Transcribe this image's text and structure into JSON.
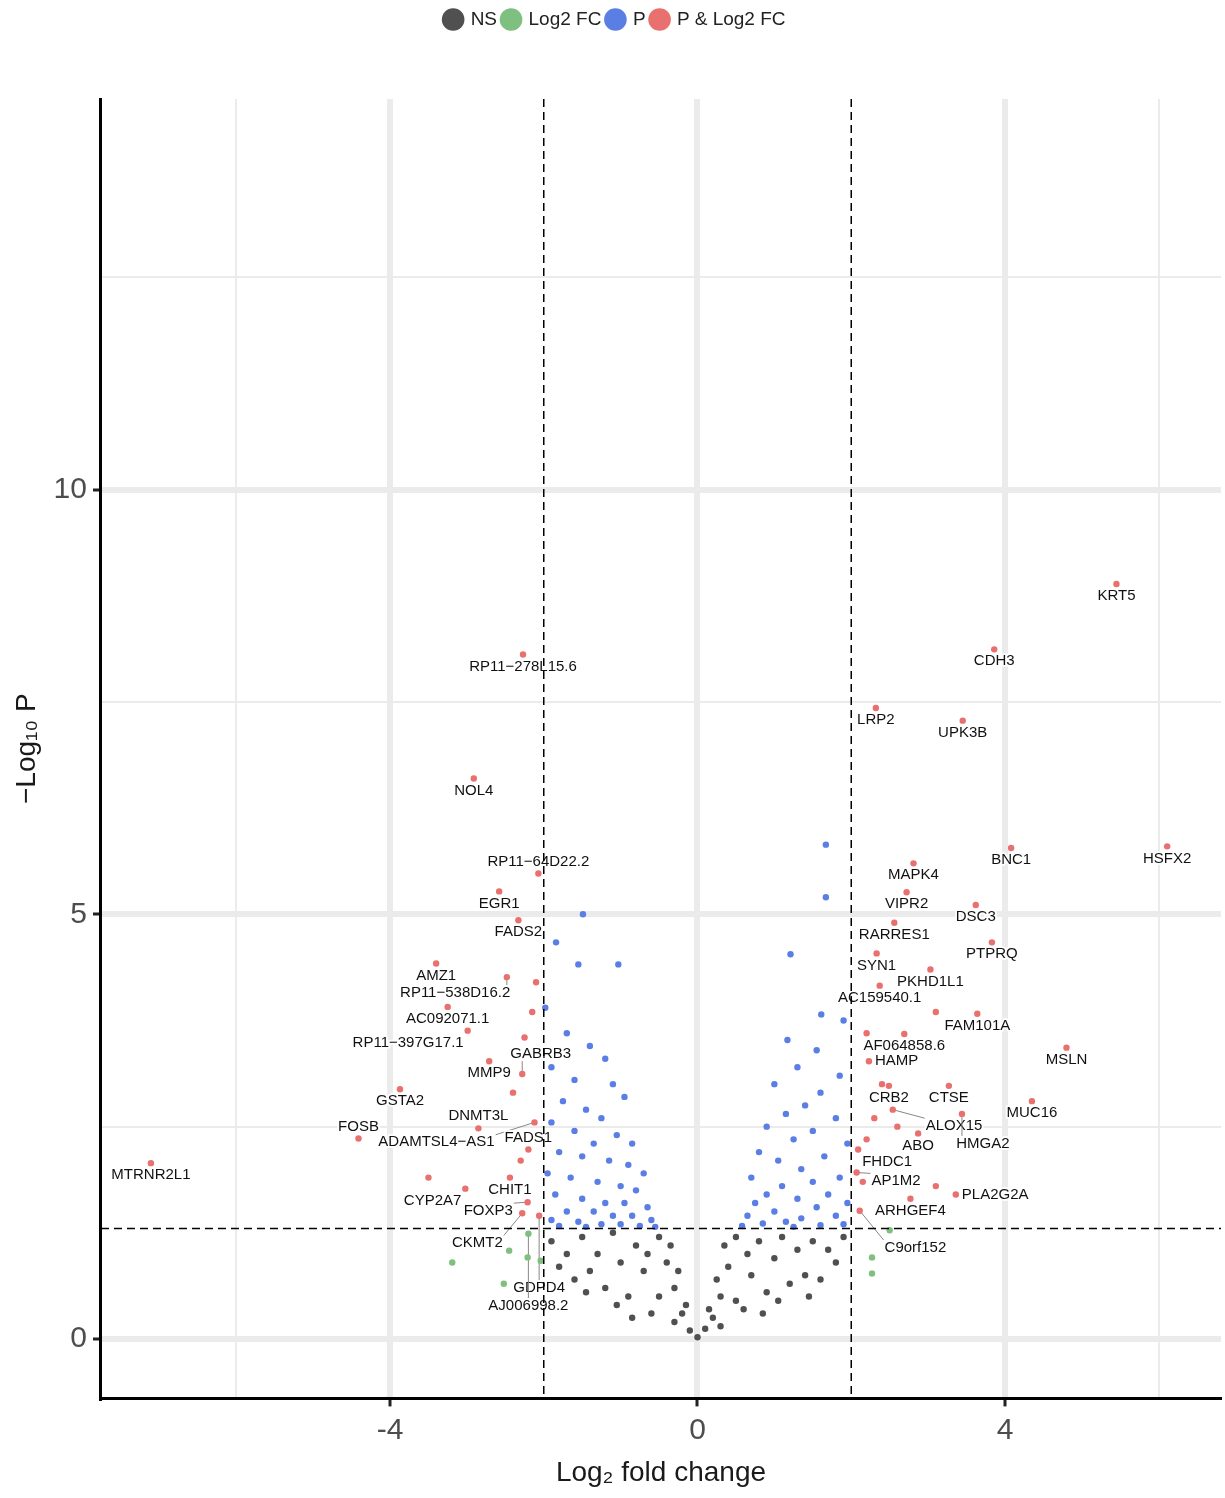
{
  "chart_data": {
    "type": "scatter",
    "xlabel": "Log₂ fold change",
    "ylabel": "−Log₁₀ P",
    "legend": "top",
    "grid": true,
    "marker": "circle",
    "xlim": [
      -7.76,
      6.81
    ],
    "ylim": [
      -0.7,
      14.6
    ],
    "xticks": [
      {
        "value": -6,
        "label": null
      },
      -4,
      0,
      4,
      {
        "value": 6,
        "label": null
      }
    ],
    "yticks": [
      0,
      {
        "value": 2.5,
        "label": null
      },
      5,
      {
        "value": 7.5,
        "label": null
      },
      10,
      {
        "value": 12.5,
        "label": null
      }
    ],
    "series": [
      {
        "name": "NS",
        "color": "#505050",
        "x": [
          0,
          -0.1,
          0.1,
          -0.2,
          0.2,
          -0.3,
          0.3,
          -0.15,
          0.15,
          -0.4,
          0.4,
          -0.3,
          0.3,
          -0.5,
          0.5,
          -0.5,
          0.5,
          -0.6,
          0.6,
          -0.7,
          0.7,
          -0.8,
          0.8,
          -0.9,
          0.9,
          -1.0,
          1.0,
          -1.1,
          1.1,
          -1.2,
          1.2,
          -1.3,
          1.3,
          -1.4,
          1.4,
          -1.5,
          1.5,
          -1.6,
          1.6,
          -1.7,
          1.7,
          -1.8,
          1.8,
          -1.9,
          1.9,
          -0.65,
          0.65,
          -1.05,
          1.05,
          -0.35,
          0.35,
          -1.45,
          1.45,
          -0.25,
          0.25,
          -0.85,
          0.85
        ],
        "values": [
          0.02,
          0.1,
          0.12,
          0.3,
          0.25,
          0.6,
          0.5,
          0.4,
          0.35,
          0.9,
          0.85,
          0.2,
          0.15,
          1.2,
          1.2,
          0.5,
          0.45,
          0.3,
          0.35,
          0.8,
          0.75,
          1.1,
          1.15,
          0.5,
          0.55,
          0.9,
          0.95,
          1.25,
          1.2,
          0.6,
          0.65,
          1.0,
          1.05,
          0.8,
          0.75,
          1.2,
          1.15,
          0.7,
          0.7,
          1.0,
          1.05,
          0.85,
          0.9,
          1.15,
          1.2,
          1.0,
          1.0,
          0.4,
          0.45,
          1.1,
          1.1,
          0.55,
          0.5,
          0.8,
          0.7,
          0.25,
          0.3
        ]
      },
      {
        "name": "Log2 FC",
        "color": "#7fbf7f",
        "x": [
          -3.19,
          -2.52,
          -2.45,
          -2.21,
          -2.04,
          -2.2,
          2.27,
          2.27,
          2.5
        ],
        "values": [
          0.9,
          0.65,
          1.04,
          0.96,
          0.92,
          1.24,
          0.96,
          0.77,
          1.28
        ]
      },
      {
        "name": "P",
        "color": "#5b7ee5",
        "x": [
          -1.84,
          -1.55,
          -1.49,
          -1.03,
          -1.98,
          -1.7,
          -1.4,
          -1.2,
          -1.9,
          -1.6,
          -1.1,
          -0.95,
          -1.75,
          -1.45,
          -1.25,
          -1.9,
          -1.6,
          -1.05,
          -0.85,
          -1.35,
          -1.8,
          -1.5,
          -1.15,
          -0.9,
          -0.7,
          -1.95,
          -1.65,
          -1.3,
          -1.0,
          -0.8,
          -1.85,
          -1.5,
          -1.2,
          -0.95,
          -0.65,
          -1.7,
          -1.35,
          -1.1,
          -0.85,
          -0.6,
          -1.9,
          -1.55,
          -1.25,
          -1.0,
          -0.75,
          -0.55,
          -1.45,
          -1.8,
          1.67,
          1.67,
          1.21,
          1.61,
          1.17,
          1.9,
          1.55,
          1.3,
          1.85,
          1.0,
          1.6,
          1.4,
          1.15,
          1.8,
          0.9,
          1.5,
          1.25,
          1.95,
          0.8,
          1.65,
          1.05,
          1.35,
          0.7,
          1.85,
          1.5,
          1.1,
          0.9,
          1.7,
          1.3,
          0.75,
          1.95,
          1.55,
          1.0,
          0.65,
          1.8,
          1.35,
          1.15,
          0.85,
          0.58,
          1.6,
          1.9,
          1.25
        ],
        "values": [
          4.67,
          4.41,
          5.0,
          4.41,
          3.9,
          3.6,
          3.45,
          3.3,
          3.2,
          3.05,
          3.0,
          2.85,
          2.8,
          2.7,
          2.6,
          2.55,
          2.45,
          2.4,
          2.3,
          2.3,
          2.2,
          2.15,
          2.1,
          2.05,
          1.95,
          1.95,
          1.9,
          1.85,
          1.8,
          1.75,
          1.7,
          1.65,
          1.6,
          1.6,
          1.55,
          1.5,
          1.5,
          1.45,
          1.45,
          1.4,
          1.4,
          1.38,
          1.35,
          1.35,
          1.33,
          1.32,
          1.32,
          1.33,
          5.82,
          5.2,
          4.53,
          3.82,
          3.52,
          3.75,
          3.4,
          3.2,
          3.1,
          3.0,
          2.9,
          2.75,
          2.65,
          2.6,
          2.5,
          2.45,
          2.35,
          2.3,
          2.2,
          2.15,
          2.1,
          2.0,
          1.9,
          1.9,
          1.85,
          1.8,
          1.7,
          1.7,
          1.65,
          1.6,
          1.6,
          1.55,
          1.5,
          1.45,
          1.45,
          1.42,
          1.38,
          1.36,
          1.33,
          1.34,
          1.35,
          1.32
        ]
      },
      {
        "name": "P & Log2 FC",
        "color": "#e8706e",
        "x": [
          5.45,
          3.86,
          -2.27,
          2.32,
          3.45,
          -2.91,
          4.08,
          6.11,
          2.81,
          2.72,
          3.62,
          2.56,
          3.83,
          2.33,
          3.03,
          2.37,
          3.64,
          2.69,
          4.8,
          2.23,
          2.49,
          3.27,
          4.35,
          2.54,
          3.44,
          2.87,
          2.09,
          2.07,
          2.77,
          3.36,
          2.11,
          -2.07,
          -2.58,
          -2.33,
          -3.4,
          -2.48,
          -3.25,
          -2.99,
          -2.71,
          -2.28,
          -3.87,
          -2.12,
          -2.85,
          -4.41,
          -2.2,
          -2.44,
          -3.02,
          -2.21,
          -2.28,
          -2.06,
          -7.11,
          -2.15,
          -2.1,
          -2.25,
          -2.4,
          -2.3,
          -3.5,
          2.2,
          2.4,
          2.3,
          2.6,
          2.2,
          2.15,
          3.1,
          3.1
        ],
        "values": [
          8.89,
          8.12,
          8.06,
          7.43,
          7.28,
          6.6,
          5.78,
          5.8,
          5.6,
          5.26,
          5.11,
          4.9,
          4.67,
          4.54,
          4.35,
          4.16,
          3.83,
          3.59,
          3.43,
          3.27,
          2.98,
          2.98,
          2.8,
          2.7,
          2.65,
          2.42,
          2.23,
          1.96,
          1.65,
          1.7,
          1.51,
          5.48,
          5.27,
          4.93,
          4.42,
          4.26,
          3.91,
          3.63,
          3.27,
          3.12,
          2.94,
          2.55,
          2.48,
          2.36,
          2.23,
          1.9,
          1.77,
          1.61,
          1.48,
          1.45,
          2.07,
          3.85,
          4.2,
          3.55,
          2.9,
          2.1,
          1.9,
          3.6,
          3.0,
          2.6,
          2.5,
          2.35,
          1.85,
          1.8,
          3.85
        ]
      }
    ],
    "ref_lines": [
      {
        "axis": "x",
        "value": -2,
        "color": "#000000",
        "line_style": "dashed"
      },
      {
        "axis": "x",
        "value": 2,
        "color": "#000000",
        "line_style": "dashed"
      },
      {
        "axis": "y",
        "value": 1.3,
        "color": "#000000",
        "line_style": "dashed"
      }
    ],
    "annotations": [
      {
        "text": "KRT5",
        "x": 5.45,
        "y": 8.89
      },
      {
        "text": "CDH3",
        "x": 3.86,
        "y": 8.12
      },
      {
        "text": "RP11−278L15.6",
        "x": -2.27,
        "y": 8.06
      },
      {
        "text": "LRP2",
        "x": 2.32,
        "y": 7.43
      },
      {
        "text": "UPK3B",
        "x": 3.45,
        "y": 7.28
      },
      {
        "text": "NOL4",
        "x": -2.91,
        "y": 6.6
      },
      {
        "text": "BNC1",
        "x": 4.08,
        "y": 5.78
      },
      {
        "text": "HSFX2",
        "x": 6.11,
        "y": 5.8
      },
      {
        "text": "MAPK4",
        "x": 2.81,
        "y": 5.6
      },
      {
        "text": "VIPR2",
        "x": 2.72,
        "y": 5.26
      },
      {
        "text": "DSC3",
        "x": 3.62,
        "y": 5.11
      },
      {
        "text": "RARRES1",
        "x": 2.56,
        "y": 4.9
      },
      {
        "text": "PTPRQ",
        "x": 3.83,
        "y": 4.67
      },
      {
        "text": "SYN1",
        "x": 2.33,
        "y": 4.54
      },
      {
        "text": "PKHD1L1",
        "x": 3.03,
        "y": 4.35
      },
      {
        "text": "AC159540.1",
        "x": 2.37,
        "y": 4.16
      },
      {
        "text": "FAM101A",
        "x": 3.64,
        "y": 3.83
      },
      {
        "text": "AF064858.6",
        "x": 2.69,
        "y": 3.59
      },
      {
        "text": "MSLN",
        "x": 4.8,
        "y": 3.43
      },
      {
        "text": "HAMP",
        "x": 2.23,
        "y": 3.27
      },
      {
        "text": "CRB2",
        "x": 2.49,
        "y": 2.98
      },
      {
        "text": "CTSE",
        "x": 3.27,
        "y": 2.98
      },
      {
        "text": "MUC16",
        "x": 4.35,
        "y": 2.8
      },
      {
        "text": "ALOX15",
        "x": 2.54,
        "y": 2.7
      },
      {
        "text": "HMGA2",
        "x": 3.44,
        "y": 2.65
      },
      {
        "text": "ABO",
        "x": 2.87,
        "y": 2.42
      },
      {
        "text": "FHDC1",
        "x": 2.09,
        "y": 2.23
      },
      {
        "text": "AP1M2",
        "x": 2.07,
        "y": 1.96
      },
      {
        "text": "ARHGEF4",
        "x": 2.77,
        "y": 1.65
      },
      {
        "text": "PLA2G2A",
        "x": 3.36,
        "y": 1.7
      },
      {
        "text": "C9orf152",
        "x": 2.11,
        "y": 1.51
      },
      {
        "text": "RP11−64D22.2",
        "x": -2.07,
        "y": 5.48
      },
      {
        "text": "EGR1",
        "x": -2.58,
        "y": 5.27
      },
      {
        "text": "FADS2",
        "x": -2.33,
        "y": 4.93
      },
      {
        "text": "AMZ1",
        "x": -3.4,
        "y": 4.42
      },
      {
        "text": "RP11−538D16.2",
        "x": -2.48,
        "y": 4.26
      },
      {
        "text": "AC092071.1",
        "x": -3.25,
        "y": 3.91
      },
      {
        "text": "RP11−397G17.1",
        "x": -2.99,
        "y": 3.63
      },
      {
        "text": "MMP9",
        "x": -2.71,
        "y": 3.27
      },
      {
        "text": "GABRB3",
        "x": -2.28,
        "y": 3.12
      },
      {
        "text": "GSTA2",
        "x": -3.87,
        "y": 2.94
      },
      {
        "text": "ADAMTSL4−AS1",
        "x": -2.12,
        "y": 2.55
      },
      {
        "text": "DNMT3L",
        "x": -2.85,
        "y": 2.48
      },
      {
        "text": "FOSB",
        "x": -4.41,
        "y": 2.36
      },
      {
        "text": "FADS1",
        "x": -2.2,
        "y": 2.23
      },
      {
        "text": "CHIT1",
        "x": -2.44,
        "y": 1.9
      },
      {
        "text": "CYP2A7",
        "x": -3.02,
        "y": 1.77
      },
      {
        "text": "FOXP3",
        "x": -2.21,
        "y": 1.61
      },
      {
        "text": "CKMT2",
        "x": -2.28,
        "y": 1.48
      },
      {
        "text": "GDPD4",
        "x": -2.06,
        "y": 1.45
      },
      {
        "text": "AJ006998.2",
        "x": -2.2,
        "y": 1.24
      },
      {
        "text": "MTRNR2L1",
        "x": -7.11,
        "y": 2.07
      }
    ]
  }
}
